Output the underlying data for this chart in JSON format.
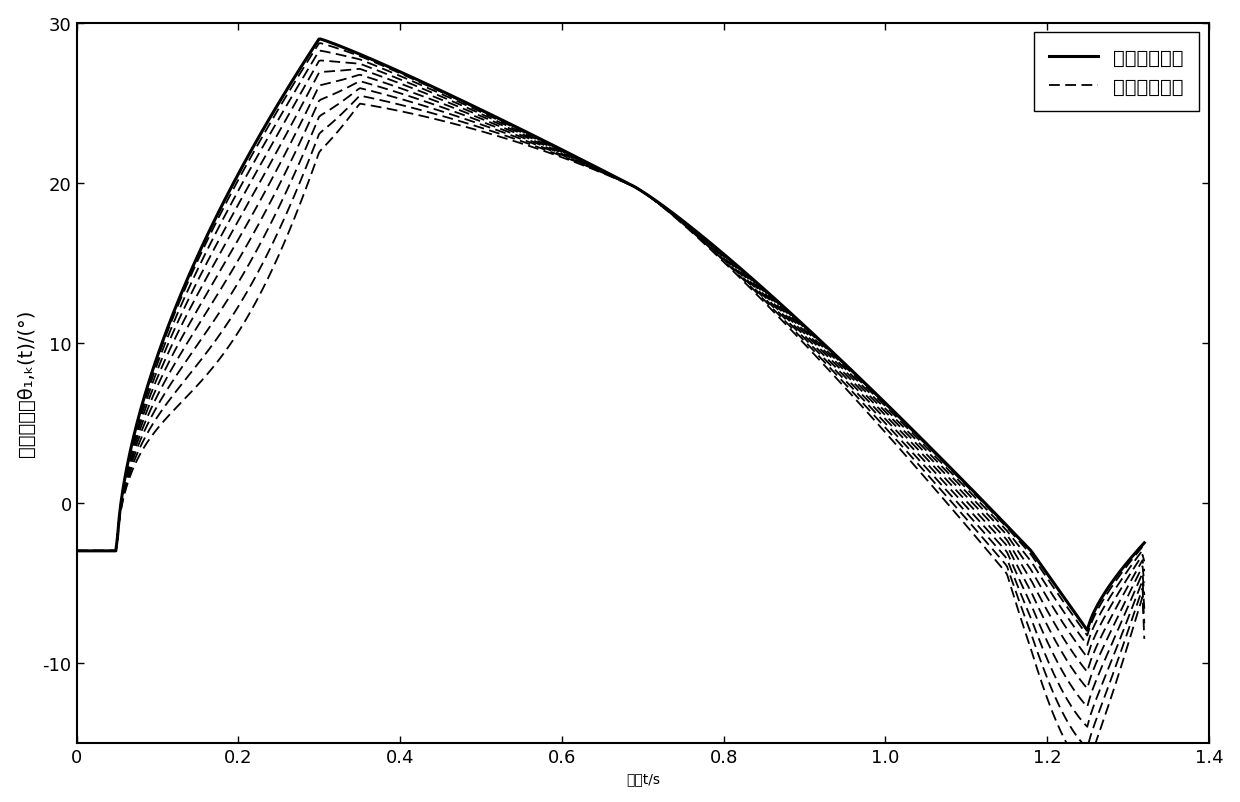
{
  "xlabel": "时间t/s",
  "ylabel": "髋关节角度θ₁,k(t)/(°)",
  "xlim": [
    0,
    1.4
  ],
  "ylim": [
    -15,
    30
  ],
  "xticks": [
    0,
    0.2,
    0.4,
    0.6,
    0.8,
    1.0,
    1.2,
    1.4
  ],
  "yticks": [
    -10,
    0,
    10,
    20,
    30
  ],
  "legend_solid": "角度期望轨迹",
  "legend_dashed": "角度跟踪轨迹",
  "num_iterations": 10,
  "line_color": "#000000",
  "background_color": "#ffffff",
  "figsize": [
    12.4,
    8.03
  ],
  "dpi": 100
}
